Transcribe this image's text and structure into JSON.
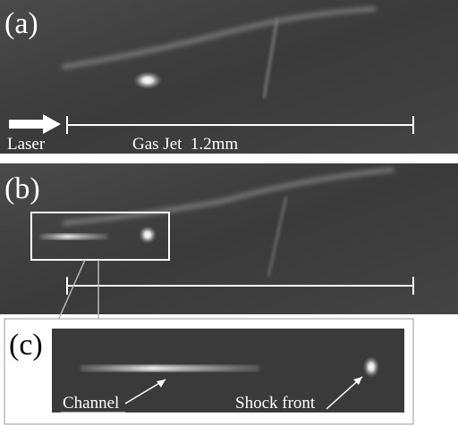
{
  "panels": [
    {
      "label": "(a)",
      "annotations": {
        "laser": "Laser",
        "gas_jet": "Gas Jet  1.2mm"
      }
    },
    {
      "label": "(b)"
    },
    {
      "label": "(c)",
      "annotations": {
        "channel": "Channel",
        "shock_front": "Shock front"
      }
    }
  ]
}
